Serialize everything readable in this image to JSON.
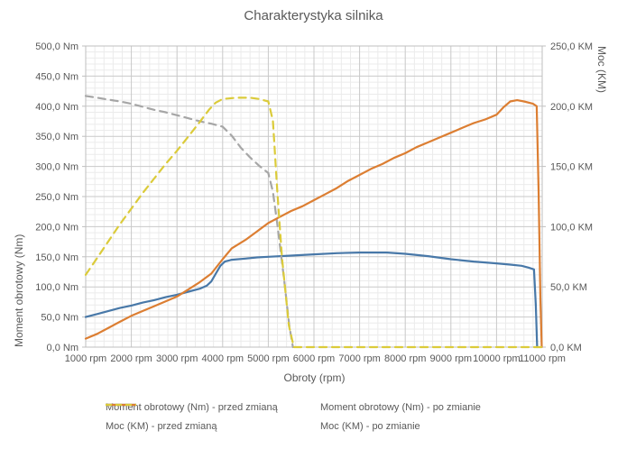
{
  "title": "Charakterystyka silnika",
  "colors": {
    "text": "#595959",
    "grid_major": "#c9c9c9",
    "grid_minor": "#ebebeb",
    "border": "#bfbfbf",
    "torque_before": "#4878a8",
    "torque_after": "#a6a6a6",
    "power_before": "#dc7e32",
    "power_after": "#dbcb3a"
  },
  "chart_data": {
    "type": "line",
    "title": "Charakterystyka silnika",
    "grid": "major+minor",
    "legend_position": "bottom",
    "x_axis": {
      "title": "Obroty (rpm)",
      "min": 1000,
      "max": 11000,
      "major_step": 1000,
      "minor_step": 200,
      "ticks": [
        [
          1000,
          "1000 rpm"
        ],
        [
          2000,
          "2000 rpm"
        ],
        [
          3000,
          "3000 rpm"
        ],
        [
          4000,
          "4000 rpm"
        ],
        [
          5000,
          "5000 rpm"
        ],
        [
          6000,
          "6000 rpm"
        ],
        [
          7000,
          "7000 rpm"
        ],
        [
          8000,
          "8000 rpm"
        ],
        [
          9000,
          "9000 rpm"
        ],
        [
          10000,
          "10000 rpm"
        ],
        [
          11000,
          "11000 rpm"
        ]
      ]
    },
    "y_left": {
      "title": "Moment obrotowy (Nm)",
      "min": 0,
      "max": 500,
      "major_step": 50,
      "minor_step": 10,
      "ticks": [
        [
          0,
          "0,0 Nm"
        ],
        [
          50,
          "50,0 Nm"
        ],
        [
          100,
          "100,0 Nm"
        ],
        [
          150,
          "150,0 Nm"
        ],
        [
          200,
          "200,0 Nm"
        ],
        [
          250,
          "250,0 Nm"
        ],
        [
          300,
          "300,0 Nm"
        ],
        [
          350,
          "350,0 Nm"
        ],
        [
          400,
          "400,0 Nm"
        ],
        [
          450,
          "450,0 Nm"
        ],
        [
          500,
          "500,0 Nm"
        ]
      ]
    },
    "y_right": {
      "title": "Moc (KM)",
      "min": 0,
      "max": 250,
      "major_step": 50,
      "ticks": [
        [
          0,
          "0,0 KM"
        ],
        [
          50,
          "50,0 KM"
        ],
        [
          100,
          "100,0 KM"
        ],
        [
          150,
          "150,0 KM"
        ],
        [
          200,
          "200,0 KM"
        ],
        [
          250,
          "250,0 KM"
        ]
      ]
    },
    "series": [
      {
        "name": "Moment obrotowy (Nm) - przed zmianą",
        "axis": "left",
        "color": "#4878a8",
        "style": "solid",
        "points": [
          [
            1000,
            50
          ],
          [
            1250,
            55
          ],
          [
            1500,
            60
          ],
          [
            1750,
            65
          ],
          [
            2000,
            69
          ],
          [
            2250,
            74
          ],
          [
            2500,
            78
          ],
          [
            2750,
            83
          ],
          [
            3000,
            87
          ],
          [
            3250,
            92
          ],
          [
            3500,
            97
          ],
          [
            3650,
            102
          ],
          [
            3750,
            109
          ],
          [
            3850,
            122
          ],
          [
            3950,
            135
          ],
          [
            4050,
            142
          ],
          [
            4200,
            145
          ],
          [
            4500,
            147
          ],
          [
            4750,
            149
          ],
          [
            5000,
            150
          ],
          [
            5500,
            152
          ],
          [
            6000,
            154
          ],
          [
            6500,
            156
          ],
          [
            7000,
            157
          ],
          [
            7600,
            157
          ],
          [
            8000,
            155
          ],
          [
            8500,
            151
          ],
          [
            9000,
            146
          ],
          [
            9500,
            142
          ],
          [
            10000,
            139
          ],
          [
            10300,
            137
          ],
          [
            10550,
            135
          ],
          [
            10700,
            132
          ],
          [
            10820,
            129
          ],
          [
            10860,
            70
          ],
          [
            10890,
            0
          ]
        ]
      },
      {
        "name": "Moment obrotowy (Nm) - po zmianie",
        "axis": "left",
        "color": "#a6a6a6",
        "style": "dashed",
        "points": [
          [
            1000,
            417
          ],
          [
            1250,
            414
          ],
          [
            1500,
            411
          ],
          [
            1750,
            408
          ],
          [
            2000,
            404
          ],
          [
            2250,
            399
          ],
          [
            2500,
            394
          ],
          [
            2750,
            390
          ],
          [
            3000,
            385
          ],
          [
            3250,
            380
          ],
          [
            3500,
            375
          ],
          [
            3750,
            371
          ],
          [
            4000,
            366
          ],
          [
            4200,
            351
          ],
          [
            4400,
            331
          ],
          [
            4600,
            315
          ],
          [
            4800,
            301
          ],
          [
            5000,
            289
          ],
          [
            5100,
            258
          ],
          [
            5200,
            203
          ],
          [
            5350,
            110
          ],
          [
            5460,
            35
          ],
          [
            5540,
            0
          ]
        ]
      },
      {
        "name": "Moc (KM) - przed zmianą",
        "axis": "right",
        "color": "#dc7e32",
        "style": "solid",
        "points": [
          [
            1000,
            7
          ],
          [
            1250,
            11
          ],
          [
            1500,
            16
          ],
          [
            1750,
            21
          ],
          [
            2000,
            26
          ],
          [
            2250,
            30
          ],
          [
            2500,
            34
          ],
          [
            2750,
            38
          ],
          [
            3000,
            42
          ],
          [
            3250,
            48
          ],
          [
            3500,
            54
          ],
          [
            3750,
            61
          ],
          [
            4000,
            73
          ],
          [
            4200,
            82
          ],
          [
            4500,
            89
          ],
          [
            4750,
            96
          ],
          [
            5000,
            103
          ],
          [
            5250,
            108
          ],
          [
            5500,
            113
          ],
          [
            5750,
            117
          ],
          [
            6000,
            122
          ],
          [
            6250,
            127
          ],
          [
            6500,
            132
          ],
          [
            6750,
            138
          ],
          [
            7000,
            143
          ],
          [
            7250,
            148
          ],
          [
            7500,
            152
          ],
          [
            7750,
            157
          ],
          [
            8000,
            161
          ],
          [
            8250,
            166
          ],
          [
            8500,
            170
          ],
          [
            8750,
            174
          ],
          [
            9000,
            178
          ],
          [
            9250,
            182
          ],
          [
            9500,
            186
          ],
          [
            9750,
            189
          ],
          [
            10000,
            193
          ],
          [
            10150,
            199
          ],
          [
            10300,
            204
          ],
          [
            10450,
            205
          ],
          [
            10600,
            204
          ],
          [
            10800,
            202
          ],
          [
            10880,
            200
          ],
          [
            10920,
            130
          ],
          [
            10960,
            40
          ],
          [
            10990,
            0
          ]
        ]
      },
      {
        "name": "Moc (KM) - po zmianie",
        "axis": "right",
        "color": "#dbcb3a",
        "style": "dashed",
        "points": [
          [
            1000,
            60
          ],
          [
            1250,
            74
          ],
          [
            1500,
            88
          ],
          [
            1750,
            102
          ],
          [
            2000,
            115
          ],
          [
            2250,
            128
          ],
          [
            2500,
            140
          ],
          [
            2750,
            152
          ],
          [
            3000,
            163
          ],
          [
            3250,
            175
          ],
          [
            3500,
            187
          ],
          [
            3700,
            197
          ],
          [
            3850,
            203
          ],
          [
            4000,
            206
          ],
          [
            4300,
            207
          ],
          [
            4600,
            207
          ],
          [
            4800,
            206
          ],
          [
            5000,
            204
          ],
          [
            5100,
            188
          ],
          [
            5200,
            128
          ],
          [
            5300,
            74
          ],
          [
            5450,
            18
          ],
          [
            5560,
            0
          ],
          [
            6000,
            0
          ],
          [
            7000,
            0
          ],
          [
            8000,
            0
          ],
          [
            9000,
            0
          ],
          [
            10000,
            0
          ],
          [
            11000,
            0
          ]
        ]
      }
    ]
  }
}
